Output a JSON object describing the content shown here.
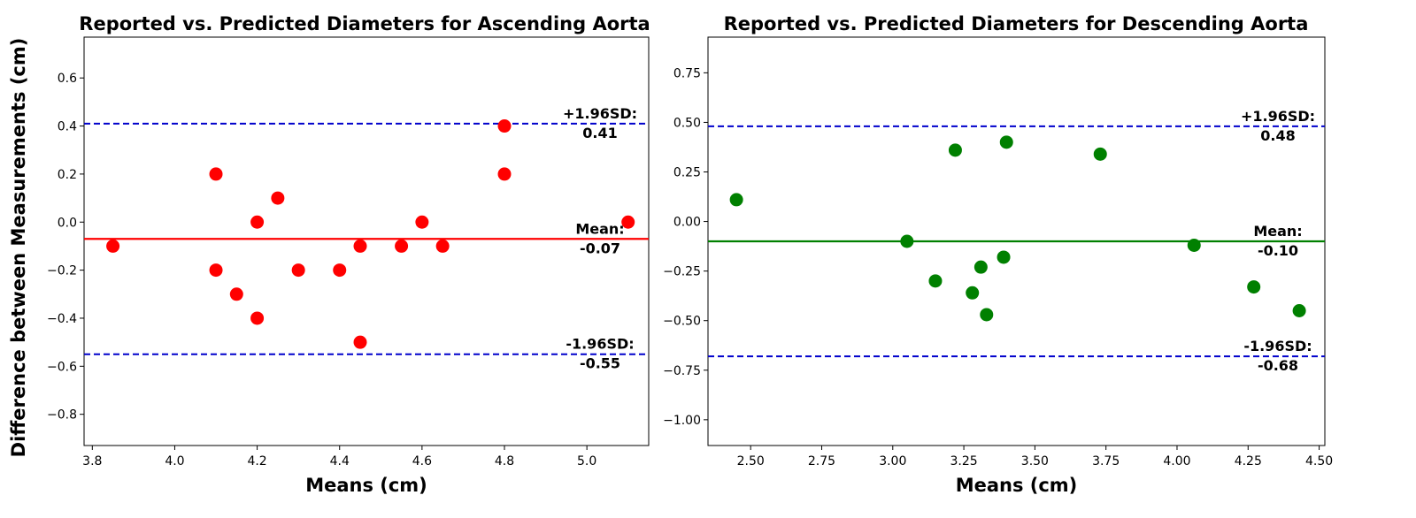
{
  "figure": {
    "ylabel": "Difference between Measurements (cm)"
  },
  "chart_data": [
    {
      "type": "scatter",
      "title": "Reported vs. Predicted Diameters for Ascending Aorta",
      "xlabel": "Means (cm)",
      "ylabel": "Difference between Measurements (cm)",
      "xlim": [
        3.78,
        5.15
      ],
      "ylim": [
        -0.93,
        0.77
      ],
      "xticks": [
        3.8,
        4.0,
        4.2,
        4.4,
        4.6,
        4.8,
        5.0
      ],
      "xtick_labels": [
        "3.8",
        "4.0",
        "4.2",
        "4.4",
        "4.6",
        "4.8",
        "5.0"
      ],
      "yticks": [
        -0.8,
        -0.6,
        -0.4,
        -0.2,
        0.0,
        0.2,
        0.4,
        0.6
      ],
      "ytick_labels": [
        "−0.8",
        "−0.6",
        "−0.4",
        "−0.2",
        "0.0",
        "0.2",
        "0.4",
        "0.6"
      ],
      "grid": false,
      "point_color": "#ff0000",
      "mean_line_color": "#ff0000",
      "limit_line_color": "#0000cc",
      "points": [
        {
          "x": 3.85,
          "y": -0.1
        },
        {
          "x": 4.1,
          "y": 0.2
        },
        {
          "x": 4.1,
          "y": -0.2
        },
        {
          "x": 4.15,
          "y": -0.3
        },
        {
          "x": 4.2,
          "y": 0.0
        },
        {
          "x": 4.2,
          "y": -0.4
        },
        {
          "x": 4.25,
          "y": 0.1
        },
        {
          "x": 4.3,
          "y": -0.2
        },
        {
          "x": 4.4,
          "y": -0.2
        },
        {
          "x": 4.45,
          "y": -0.1
        },
        {
          "x": 4.45,
          "y": -0.5
        },
        {
          "x": 4.55,
          "y": -0.1
        },
        {
          "x": 4.6,
          "y": 0.0
        },
        {
          "x": 4.65,
          "y": -0.1
        },
        {
          "x": 4.8,
          "y": 0.4
        },
        {
          "x": 4.8,
          "y": 0.2
        },
        {
          "x": 5.1,
          "y": 0.0
        }
      ],
      "mean": {
        "value": -0.07,
        "label": "Mean:",
        "value_label": "-0.07"
      },
      "upper_limit": {
        "value": 0.41,
        "label": "+1.96SD:",
        "value_label": "0.41"
      },
      "lower_limit": {
        "value": -0.55,
        "label": "-1.96SD:",
        "value_label": "-0.55"
      }
    },
    {
      "type": "scatter",
      "title": "Reported vs. Predicted Diameters for Descending Aorta",
      "xlabel": "Means (cm)",
      "ylabel": "",
      "xlim": [
        2.35,
        4.52
      ],
      "ylim": [
        -1.13,
        0.93
      ],
      "xticks": [
        2.5,
        2.75,
        3.0,
        3.25,
        3.5,
        3.75,
        4.0,
        4.25,
        4.5
      ],
      "xtick_labels": [
        "2.50",
        "2.75",
        "3.00",
        "3.25",
        "3.50",
        "3.75",
        "4.00",
        "4.25",
        "4.50"
      ],
      "yticks": [
        -1.0,
        -0.75,
        -0.5,
        -0.25,
        0.0,
        0.25,
        0.5,
        0.75
      ],
      "ytick_labels": [
        "−1.00",
        "−0.75",
        "−0.50",
        "−0.25",
        "0.00",
        "0.25",
        "0.50",
        "0.75"
      ],
      "grid": false,
      "point_color": "#008000",
      "mean_line_color": "#008000",
      "limit_line_color": "#0000cc",
      "points": [
        {
          "x": 2.45,
          "y": 0.11
        },
        {
          "x": 3.05,
          "y": -0.1
        },
        {
          "x": 3.15,
          "y": -0.3
        },
        {
          "x": 3.22,
          "y": 0.36
        },
        {
          "x": 3.28,
          "y": -0.36
        },
        {
          "x": 3.31,
          "y": -0.23
        },
        {
          "x": 3.33,
          "y": -0.47
        },
        {
          "x": 3.39,
          "y": -0.18
        },
        {
          "x": 3.4,
          "y": 0.4
        },
        {
          "x": 3.73,
          "y": 0.34
        },
        {
          "x": 4.06,
          "y": -0.12
        },
        {
          "x": 4.27,
          "y": -0.33
        },
        {
          "x": 4.43,
          "y": -0.45
        }
      ],
      "mean": {
        "value": -0.1,
        "label": "Mean:",
        "value_label": "-0.10"
      },
      "upper_limit": {
        "value": 0.48,
        "label": "+1.96SD:",
        "value_label": "0.48"
      },
      "lower_limit": {
        "value": -0.68,
        "label": "-1.96SD:",
        "value_label": "-0.68"
      }
    }
  ]
}
